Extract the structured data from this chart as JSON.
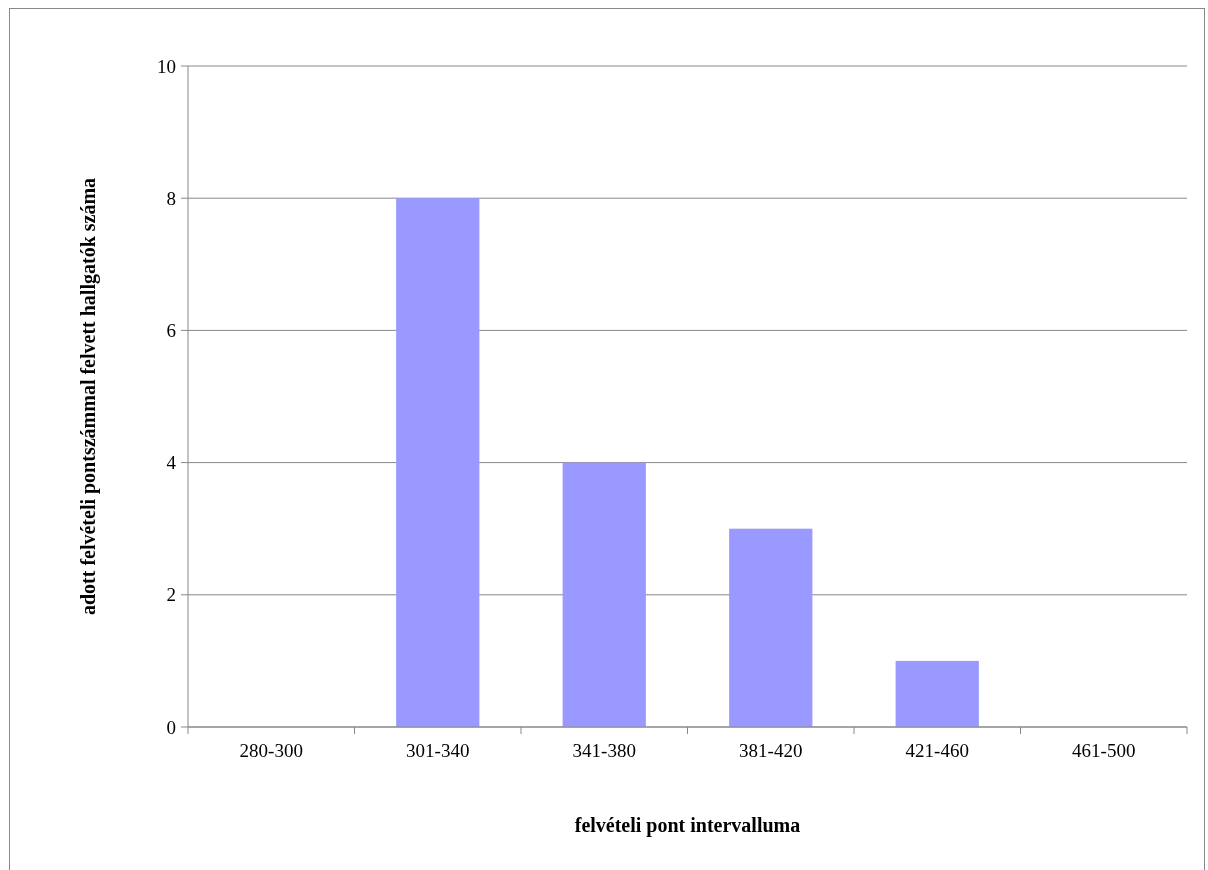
{
  "chart_data": {
    "type": "bar",
    "categories": [
      "280-300",
      "301-340",
      "341-380",
      "381-420",
      "421-460",
      "461-500"
    ],
    "values": [
      0,
      8,
      4,
      3,
      1,
      0
    ],
    "color": "#9999ff",
    "xlabel": "felvételi pont intervalluma",
    "ylabel": "adott felvételi pontszámmal felvett hallgatók száma",
    "ylim": [
      0,
      10
    ],
    "yticks": [
      0,
      2,
      4,
      6,
      8,
      10
    ],
    "grid": "y"
  }
}
